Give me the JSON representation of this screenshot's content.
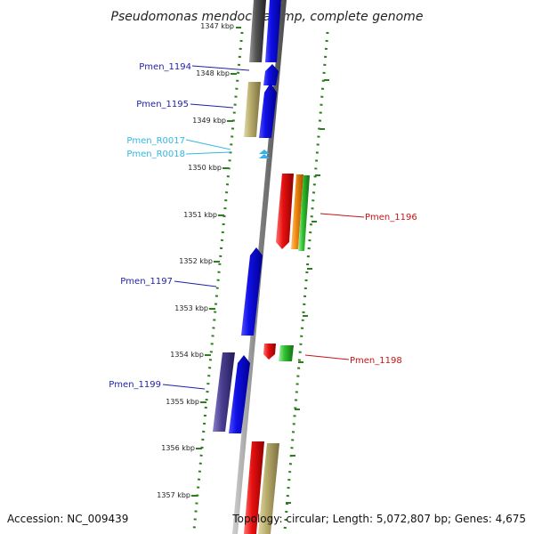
{
  "title": "Pseudomonas mendocina ymp, complete genome",
  "footer": {
    "accession": "Accession: NC_009439",
    "topology": "Topology: circular; Length: 5,072,807 bp; Genes: 4,675"
  },
  "colors": {
    "backbone": "#909090",
    "scale_dots": "#2e7d1e",
    "label_blue": "#1f1fa8",
    "label_cyan": "#33b8e0",
    "label_red": "#c81414",
    "gene_blue": "#1010e8",
    "gene_gray": "#555555",
    "gene_tan": "#b8ac6c",
    "gene_purple": "#4a3f92",
    "gene_red": "#e81010",
    "gene_orange": "#f08a10",
    "gene_green": "#30c030",
    "rna_cyan": "#38b0e8"
  },
  "scale_ticks": [
    "1347 kbp",
    "1348 kbp",
    "1349 kbp",
    "1350 kbp",
    "1351 kbp",
    "1352 kbp",
    "1353 kbp",
    "1354 kbp",
    "1355 kbp",
    "1356 kbp",
    "1357 kbp"
  ],
  "gene_labels": [
    {
      "name": "Pmen_1194",
      "color": "label_blue"
    },
    {
      "name": "Pmen_1195",
      "color": "label_blue"
    },
    {
      "name": "Pmen_R0017",
      "color": "label_cyan"
    },
    {
      "name": "Pmen_R0018",
      "color": "label_cyan"
    },
    {
      "name": "Pmen_1196",
      "color": "label_red"
    },
    {
      "name": "Pmen_1197",
      "color": "label_blue"
    },
    {
      "name": "Pmen_1198",
      "color": "label_red"
    },
    {
      "name": "Pmen_1199",
      "color": "label_blue"
    }
  ]
}
